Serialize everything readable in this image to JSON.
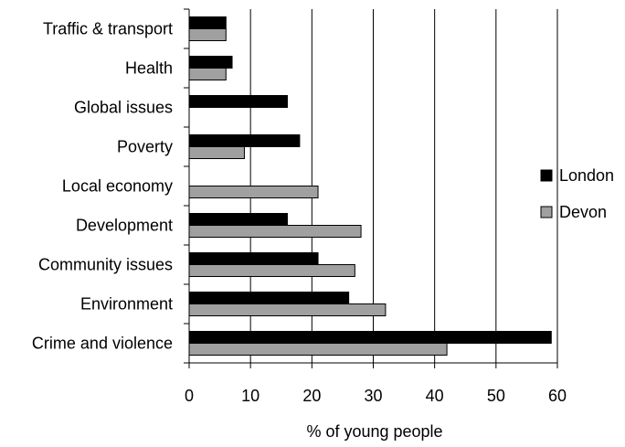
{
  "chart_data": {
    "type": "bar",
    "orientation": "horizontal",
    "title": "",
    "xlabel": "% of young people",
    "ylabel": "",
    "xlim": [
      0,
      60
    ],
    "xticks": [
      0,
      10,
      20,
      30,
      40,
      50,
      60
    ],
    "grid": "vertical",
    "legend_position": "right",
    "categories": [
      "Traffic & transport",
      "Health",
      "Global issues",
      "Poverty",
      "Local economy",
      "Development",
      "Community issues",
      "Environment",
      "Crime and violence"
    ],
    "series": [
      {
        "name": "London",
        "color": "#000000",
        "values": [
          6,
          7,
          16,
          18,
          0,
          16,
          21,
          26,
          59
        ]
      },
      {
        "name": "Devon",
        "color": "#a0a0a0",
        "values": [
          6,
          6,
          0,
          9,
          21,
          28,
          27,
          32,
          42
        ]
      }
    ]
  }
}
